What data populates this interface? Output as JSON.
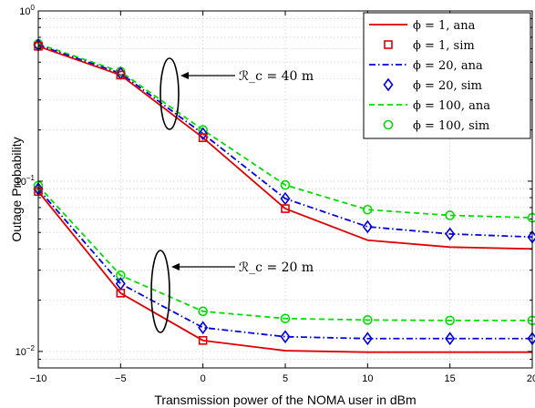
{
  "chart_data": {
    "type": "line",
    "title": "",
    "xlabel": "Transmission power of the NOMA user in dBm",
    "ylabel": "Outage Probability",
    "xlim": [
      -10,
      20
    ],
    "ylim": [
      0.008,
      1
    ],
    "yscale": "log",
    "grid": true,
    "legend_position": "top-right",
    "xticks": [
      -10,
      -5,
      0,
      5,
      10,
      15,
      20
    ],
    "xtick_labels": [
      "−10",
      "−5",
      "0",
      "5",
      "10",
      "15",
      "20"
    ],
    "ytick_labels": [
      {
        "base": "10",
        "exp": "0",
        "value": 1
      },
      {
        "base": "10",
        "exp": "−1",
        "value": 0.1
      },
      {
        "base": "10",
        "exp": "−2",
        "value": 0.01
      }
    ],
    "x": [
      -10,
      -5,
      0,
      5,
      10,
      15,
      20
    ],
    "series": [
      {
        "name": "ϕ = 1, ana",
        "style": "solid-line",
        "color": "#e00000",
        "groups": [
          [
            0.62,
            0.42,
            0.18,
            0.069,
            0.045,
            0.041,
            0.04
          ],
          [
            0.087,
            0.022,
            0.0116,
            0.0101,
            0.0099,
            0.0099,
            0.0099
          ]
        ]
      },
      {
        "name": "ϕ = 1, sim",
        "style": "square-marker",
        "color": "#e00000",
        "groups": [
          [
            0.62,
            0.42,
            0.18,
            0.069,
            null,
            null,
            null
          ],
          [
            0.087,
            0.022,
            0.0116,
            null,
            null,
            null,
            null
          ]
        ]
      },
      {
        "name": "ϕ = 20, ana",
        "style": "dashdot-line",
        "color": "#0000e0",
        "groups": [
          [
            0.63,
            0.43,
            0.19,
            0.079,
            0.054,
            0.049,
            0.047
          ],
          [
            0.09,
            0.025,
            0.0138,
            0.0122,
            0.0119,
            0.0119,
            0.0119
          ]
        ]
      },
      {
        "name": "ϕ = 20, sim",
        "style": "diamond-marker",
        "color": "#0000e0",
        "groups": [
          [
            0.63,
            0.43,
            0.19,
            0.079,
            0.054,
            0.049,
            0.047
          ],
          [
            0.09,
            0.025,
            0.0138,
            0.0122,
            0.0119,
            0.0119,
            0.0119
          ]
        ]
      },
      {
        "name": "ϕ = 100, ana",
        "style": "dashed-line",
        "color": "#00dd00",
        "groups": [
          [
            0.64,
            0.44,
            0.2,
            0.095,
            0.068,
            0.063,
            0.061
          ],
          [
            0.094,
            0.028,
            0.0172,
            0.0156,
            0.0153,
            0.0152,
            0.0152
          ]
        ]
      },
      {
        "name": "ϕ = 100, sim",
        "style": "circle-marker",
        "color": "#00dd00",
        "groups": [
          [
            0.64,
            0.44,
            0.2,
            0.095,
            0.068,
            0.063,
            0.061
          ],
          [
            0.094,
            0.028,
            0.0172,
            0.0156,
            0.0153,
            0.0152,
            0.0152
          ]
        ]
      }
    ],
    "annotations": [
      {
        "text": "ℛ_c = 40 m",
        "arrow_to_x": -3,
        "arrow_to_y": 0.33
      },
      {
        "text": "ℛ_c = 20 m",
        "arrow_to_x": -3,
        "arrow_to_y": 0.022
      }
    ]
  }
}
